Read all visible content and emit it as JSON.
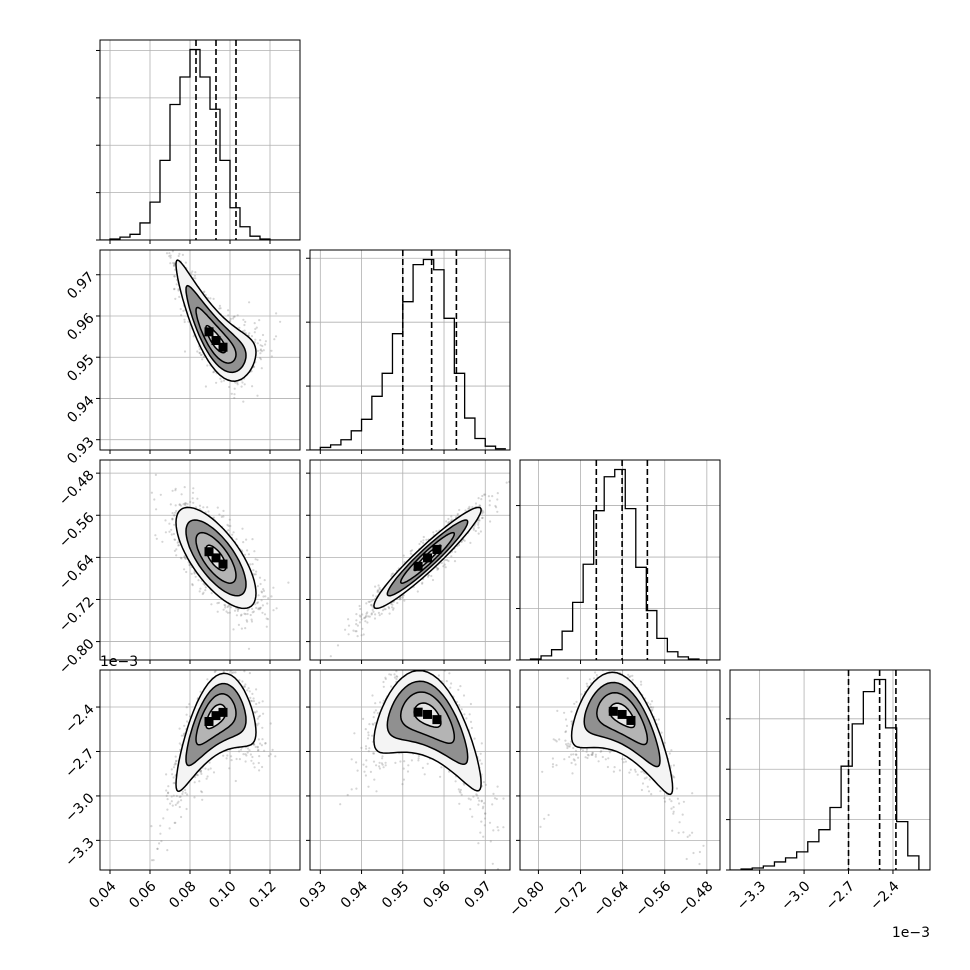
{
  "chart_data": {
    "type": "corner",
    "params": [
      {
        "key": "p0",
        "range": [
          0.035,
          0.135
        ],
        "ticks": [
          0.04,
          0.06,
          0.08,
          0.1,
          0.12
        ],
        "tick_labels": [
          "0.04",
          "0.06",
          "0.08",
          "0.10",
          "0.12"
        ],
        "offset_label": "",
        "quantiles": [
          0.083,
          0.093,
          0.103
        ]
      },
      {
        "key": "p1",
        "range": [
          0.9275,
          0.976
        ],
        "ticks": [
          0.93,
          0.94,
          0.95,
          0.96,
          0.97
        ],
        "tick_labels": [
          "0.93",
          "0.94",
          "0.95",
          "0.96",
          "0.97"
        ],
        "offset_label": "",
        "quantiles": [
          0.95,
          0.957,
          0.963
        ]
      },
      {
        "key": "p2",
        "range": [
          -0.835,
          -0.455
        ],
        "ticks": [
          -0.8,
          -0.72,
          -0.64,
          -0.56,
          -0.48
        ],
        "tick_labels": [
          "−0.80",
          "−0.72",
          "−0.64",
          "−0.56",
          "−0.48"
        ],
        "offset_label": "",
        "quantiles": [
          -0.69,
          -0.641,
          -0.593
        ]
      },
      {
        "key": "p3",
        "range": [
          -3.5,
          -2.15
        ],
        "ticks": [
          -3.3,
          -3.0,
          -2.7,
          -2.4
        ],
        "tick_labels": [
          "−3.3",
          "−3.0",
          "−2.7",
          "−2.4"
        ],
        "offset_label": "1e−3",
        "quantiles": [
          -2.7,
          -2.49,
          -2.38
        ]
      }
    ],
    "marginals": [
      {
        "param": 0,
        "bin_width": 0.005,
        "counts": [
          0,
          1,
          3,
          6,
          18,
          40,
          84,
          143,
          172,
          201,
          172,
          138,
          84,
          34,
          14,
          4,
          1,
          0,
          0,
          0
        ]
      },
      {
        "param": 1,
        "bin_width": 0.0025,
        "counts": [
          0,
          2,
          4,
          8,
          15,
          24,
          42,
          60,
          91,
          116,
          145,
          149,
          141,
          103,
          60,
          25,
          9,
          3,
          1
        ]
      },
      {
        "param": 2,
        "bin_width": 0.02,
        "counts": [
          0,
          1,
          4,
          10,
          28,
          56,
          93,
          145,
          178,
          185,
          147,
          90,
          48,
          21,
          8,
          3,
          1,
          0,
          0
        ]
      },
      {
        "param": 3,
        "bin_width": 0.075,
        "counts": [
          0,
          1,
          2,
          4,
          8,
          12,
          18,
          28,
          40,
          62,
          103,
          145,
          177,
          189,
          141,
          48,
          14,
          0
        ]
      }
    ],
    "pairs": [
      {
        "x": 0,
        "y": 1,
        "mean": [
          0.093,
          0.956
        ],
        "sd": [
          0.01,
          0.0065
        ],
        "rho": -0.82,
        "curve_x": 0.3
      },
      {
        "x": 0,
        "y": 2,
        "mean": [
          0.093,
          -0.641
        ],
        "sd": [
          0.01,
          0.048
        ],
        "rho": -0.7,
        "curve_x": 0.0
      },
      {
        "x": 1,
        "y": 2,
        "mean": [
          0.956,
          -0.641
        ],
        "sd": [
          0.0065,
          0.048
        ],
        "rho": 0.95,
        "curve_x": 0.0
      },
      {
        "x": 0,
        "y": 3,
        "mean": [
          0.093,
          -2.53
        ],
        "sd": [
          0.01,
          0.16
        ],
        "rho": 0.55,
        "curve_x": -0.45
      },
      {
        "x": 1,
        "y": 3,
        "mean": [
          0.956,
          -2.53
        ],
        "sd": [
          0.0065,
          0.16
        ],
        "rho": -0.45,
        "curve_x": -0.5
      },
      {
        "x": 2,
        "y": 3,
        "mean": [
          -0.641,
          -2.53
        ],
        "sd": [
          0.048,
          0.16
        ],
        "rho": -0.55,
        "curve_x": -0.5
      }
    ],
    "contour_levels": [
      0.5,
      1.0,
      1.5,
      2.0
    ],
    "grid": true,
    "colors": {
      "line": "#000000",
      "grid": "#b0b0b0",
      "point": "#888888"
    }
  }
}
